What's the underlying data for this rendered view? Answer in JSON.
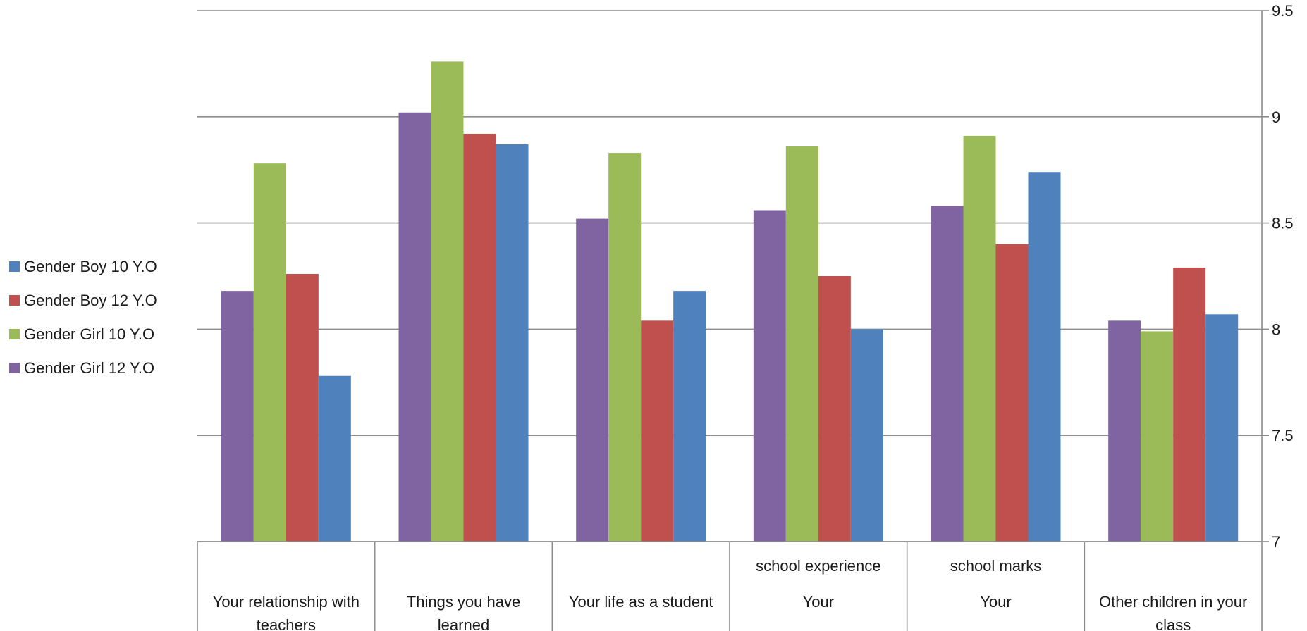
{
  "chart_data": {
    "type": "bar",
    "categories": [
      [
        "Your relationship with",
        "teachers"
      ],
      [
        "Things you have",
        "learned"
      ],
      [
        "Your life as a student"
      ],
      [
        "school experience",
        "Your"
      ],
      [
        "school marks",
        "Your"
      ],
      [
        "Other children in your",
        "class"
      ]
    ],
    "series": [
      {
        "name": "Gender Girl 12 Y.O",
        "color": "#8064A2",
        "values": [
          8.18,
          9.02,
          8.52,
          8.56,
          8.58,
          8.04
        ]
      },
      {
        "name": "Gender Girl 10 Y.O",
        "color": "#9BBB59",
        "values": [
          8.78,
          9.26,
          8.83,
          8.86,
          8.91,
          7.99
        ]
      },
      {
        "name": "Gender Boy 12 Y.O",
        "color": "#C0504D",
        "values": [
          8.26,
          8.92,
          8.04,
          8.25,
          8.4,
          8.29
        ]
      },
      {
        "name": "Gender Boy 10 Y.O",
        "color": "#4F81BD",
        "values": [
          7.78,
          8.87,
          8.18,
          8.0,
          8.74,
          8.07
        ]
      }
    ],
    "legend_order": [
      "Gender Boy 10 Y.O",
      "Gender Boy 12 Y.O",
      "Gender Girl 10 Y.O",
      "Gender Girl 12 Y.O"
    ],
    "yticks": [
      "7",
      "7.5",
      "8",
      "8.5",
      "9",
      "9.5"
    ],
    "ylim": [
      7,
      9.5
    ],
    "y_axis_side": "right",
    "legend_position": "left",
    "grid": true
  }
}
